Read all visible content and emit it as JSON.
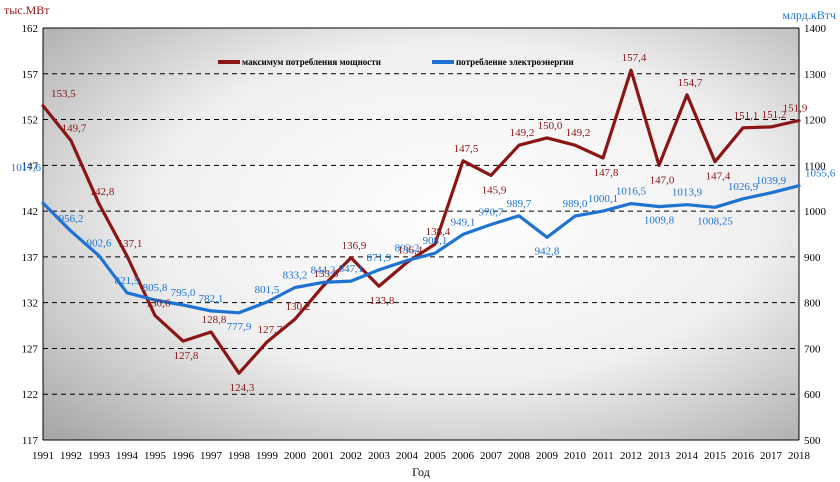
{
  "chart_data": {
    "type": "line",
    "xlabel": "Год",
    "y_left_unit": "тыс.МВт",
    "y_right_unit": "млрд.кВтч",
    "y_left_lim": [
      117,
      162
    ],
    "y_left_ticks": [
      117,
      122,
      127,
      132,
      137,
      142,
      147,
      152,
      157,
      162
    ],
    "y_right_lim": [
      500,
      1400
    ],
    "y_right_ticks": [
      500,
      600,
      700,
      800,
      900,
      1000,
      1100,
      1200,
      1300,
      1400
    ],
    "grid": true,
    "legend_position": "top",
    "x": [
      1991,
      1992,
      1993,
      1994,
      1995,
      1996,
      1997,
      1998,
      1999,
      2000,
      2001,
      2002,
      2003,
      2004,
      2005,
      2006,
      2007,
      2008,
      2009,
      2010,
      2011,
      2012,
      2013,
      2014,
      2015,
      2016,
      2017,
      2018
    ],
    "series": [
      {
        "name": "максимум потребления мощности",
        "axis": "left",
        "color": "#8b1414",
        "values": [
          153.5,
          149.7,
          142.8,
          137.1,
          130.6,
          127.8,
          128.8,
          124.3,
          127.7,
          130.2,
          133.8,
          136.9,
          133.8,
          136.4,
          138.4,
          147.5,
          145.9,
          149.2,
          150.0,
          149.2,
          147.8,
          157.4,
          147.0,
          154.7,
          147.4,
          151.1,
          151.2,
          151.9
        ],
        "labels": [
          "153,5",
          "149,7",
          "142,8",
          "137,1",
          "130,6",
          "127,8",
          "128,8",
          "124,3",
          "127,7",
          "130,2",
          "133,8",
          "136,9",
          "133,8",
          "136,4",
          "138,4",
          "147,5",
          "145,9",
          "149,2",
          "150,0",
          "149,2",
          "147,8",
          "157,4",
          "147,0",
          "154,7",
          "147,4",
          "151,1",
          "151,2",
          "151,9"
        ]
      },
      {
        "name": "потребление электроэнергии",
        "axis": "right",
        "color": "#1e73d2",
        "values": [
          1017.6,
          956.2,
          902.6,
          821.5,
          805.8,
          795.0,
          782.1,
          777.9,
          801.5,
          833.2,
          844.2,
          847.1,
          871.9,
          892.2,
          908.1,
          949.1,
          970.7,
          989.7,
          942.8,
          989.0,
          1000.1,
          1016.5,
          1009.8,
          1013.9,
          1008.25,
          1026.9,
          1039.9,
          1055.6
        ],
        "labels": [
          "1017,6",
          "956,2",
          "902,6",
          "821,5",
          "805,8",
          "795,0",
          "782,1",
          "777,9",
          "801,5",
          "833,2",
          "844,2",
          "847,1",
          "871,9",
          "892,2",
          "908,1",
          "949,1",
          "970,7",
          "989,7",
          "942,8",
          "989,0",
          "1000,1",
          "1016,5",
          "1009,8",
          "1013,9",
          "1008,25",
          "1026,9",
          "1039,9",
          "1055,6"
        ]
      }
    ]
  }
}
